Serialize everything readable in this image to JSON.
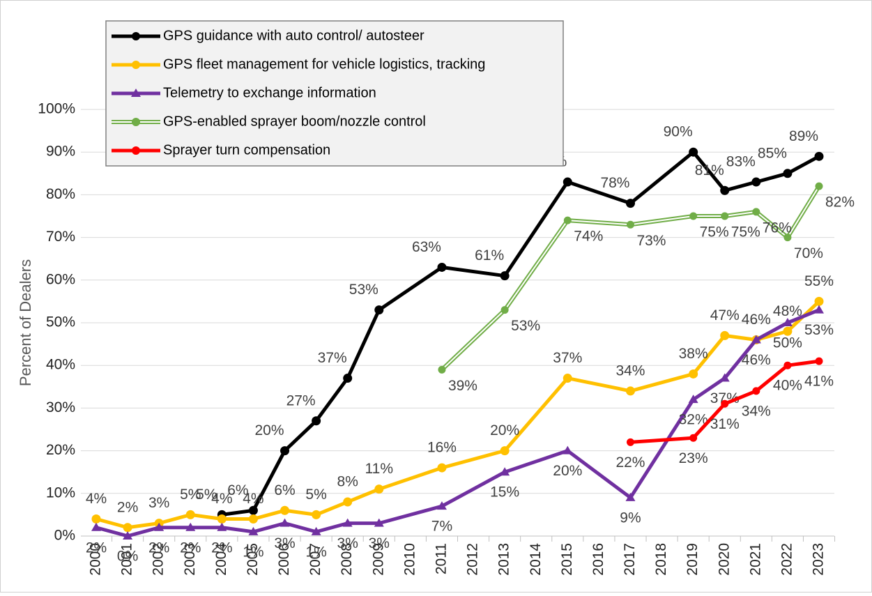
{
  "chart_data": {
    "type": "line",
    "y_label": "Percent of Dealers",
    "xlim": [
      2000,
      2023
    ],
    "xticks": [
      2000,
      2001,
      2002,
      2003,
      2004,
      2005,
      2006,
      2007,
      2008,
      2009,
      2010,
      2011,
      2012,
      2013,
      2014,
      2015,
      2016,
      2017,
      2018,
      2019,
      2020,
      2021,
      2022,
      2023
    ],
    "ylim": [
      0,
      100
    ],
    "yticks": [
      {
        "value": 0,
        "label": "0%"
      },
      {
        "value": 10,
        "label": "10%"
      },
      {
        "value": 20,
        "label": "20%"
      },
      {
        "value": 30,
        "label": "30%"
      },
      {
        "value": 40,
        "label": "40%"
      },
      {
        "value": 50,
        "label": "50%"
      },
      {
        "value": 60,
        "label": "60%"
      },
      {
        "value": 70,
        "label": "70%"
      },
      {
        "value": 80,
        "label": "80%"
      },
      {
        "value": 90,
        "label": "90%"
      },
      {
        "value": 100,
        "label": "100%"
      }
    ],
    "grid": true,
    "legend": "top-left",
    "series": [
      {
        "name": "GPS guidance with auto control/ autosteer",
        "color": "#000000",
        "marker": "circle",
        "x": [
          2004,
          2005,
          2006,
          2007,
          2008,
          2009,
          2011,
          2013,
          2015,
          2017,
          2019,
          2020,
          2021,
          2022,
          2023
        ],
        "values": [
          5,
          6,
          20,
          27,
          37,
          53,
          63,
          61,
          83,
          78,
          90,
          81,
          83,
          85,
          89
        ],
        "value_labels": [
          "5%",
          "6%",
          "20%",
          "27%",
          "37%",
          "53%",
          "63%",
          "61%",
          "83%",
          "78%",
          "90%",
          "81%",
          "83%",
          "85%",
          "89%"
        ]
      },
      {
        "name": "GPS fleet management for vehicle logistics, tracking",
        "color": "#ffc000",
        "marker": "circle",
        "x": [
          2000,
          2001,
          2002,
          2003,
          2004,
          2005,
          2006,
          2007,
          2008,
          2009,
          2011,
          2013,
          2015,
          2017,
          2019,
          2020,
          2021,
          2022,
          2023
        ],
        "values": [
          4,
          2,
          3,
          5,
          4,
          4,
          6,
          5,
          8,
          11,
          16,
          20,
          37,
          34,
          38,
          47,
          46,
          48,
          55
        ],
        "value_labels": [
          "4%",
          "2%",
          "3%",
          "5%",
          "4%",
          "4%",
          "6%",
          "5%",
          "8%",
          "11%",
          "16%",
          "20%",
          "37%",
          "34%",
          "38%",
          "47%",
          "46%",
          "48%",
          "55%"
        ]
      },
      {
        "name": "Telemetry to exchange information",
        "color": "#7030a0",
        "marker": "triangle",
        "x": [
          2000,
          2001,
          2002,
          2003,
          2004,
          2005,
          2006,
          2007,
          2008,
          2009,
          2011,
          2013,
          2015,
          2017,
          2019,
          2020,
          2021,
          2022,
          2023
        ],
        "values": [
          2,
          0,
          2,
          2,
          2,
          1,
          3,
          1,
          3,
          3,
          7,
          15,
          20,
          9,
          32,
          37,
          46,
          50,
          53
        ],
        "value_labels": [
          "2%",
          "0%",
          "2%",
          "2%",
          "2%",
          "1%",
          "3%",
          "1%",
          "3%",
          "3%",
          "7%",
          "15%",
          "20%",
          "9%",
          "32%",
          "37%",
          "46%",
          "50%",
          "53%"
        ]
      },
      {
        "name": "GPS-enabled sprayer boom/nozzle control",
        "color": "#70ad47",
        "marker": "circle",
        "double_line": true,
        "x": [
          2011,
          2013,
          2015,
          2017,
          2019,
          2020,
          2021,
          2022,
          2023
        ],
        "values": [
          39,
          53,
          74,
          73,
          75,
          75,
          76,
          70,
          82
        ],
        "value_labels": [
          "39%",
          "53%",
          "74%",
          "73%",
          "75%",
          "75%",
          "76%",
          "70%",
          "82%"
        ]
      },
      {
        "name": "Sprayer turn compensation",
        "color": "#ff0000",
        "marker": "circle",
        "x": [
          2017,
          2019,
          2020,
          2021,
          2022,
          2023
        ],
        "values": [
          22,
          23,
          31,
          34,
          40,
          41
        ],
        "value_labels": [
          "22%",
          "23%",
          "31%",
          "34%",
          "40%",
          "41%"
        ]
      }
    ]
  }
}
